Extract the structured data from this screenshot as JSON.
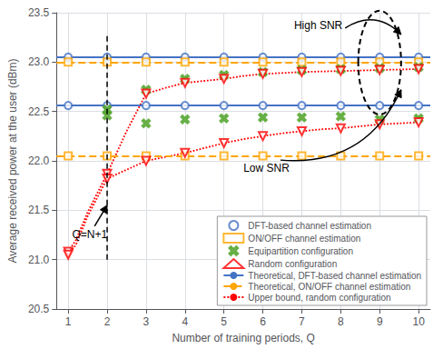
{
  "chart_data": {
    "type": "scatter",
    "xlabel": "Number of training periods, Q",
    "ylabel": "Average received power at the user (dBm)",
    "xlim": [
      0.7,
      10.3
    ],
    "xticks": [
      1,
      2,
      3,
      4,
      5,
      6,
      7,
      8,
      9,
      10
    ],
    "ylim": [
      20.5,
      23.5
    ],
    "yticks": [
      20.5,
      {
        "value": 21,
        "label": "21.0"
      },
      21.5,
      {
        "value": 22,
        "label": "22.0"
      },
      22.5,
      {
        "value": 23,
        "label": "23.0"
      },
      23.5
    ],
    "grid": true,
    "legend": "lower right",
    "series": [
      {
        "name": "DFT-based channel estimation",
        "type": "scatter",
        "marker": "circle",
        "color": "#4472C4",
        "x": [
          1,
          2,
          3,
          4,
          5,
          6,
          7,
          8,
          9,
          10
        ],
        "values": [
          23.05,
          23.05,
          23.05,
          23.05,
          23.05,
          23.05,
          23.05,
          23.05,
          23.05,
          23.05
        ]
      },
      {
        "name": "DFT-based channel estimation",
        "type": "scatter",
        "marker": "circle",
        "color": "#4472C4",
        "x": [
          1,
          2,
          3,
          4,
          5,
          6,
          7,
          8,
          9,
          10
        ],
        "values": [
          22.56,
          22.56,
          22.56,
          22.56,
          22.56,
          22.56,
          22.56,
          22.56,
          22.56,
          22.56
        ]
      },
      {
        "name": "ON/OFF channel estimation",
        "type": "scatter",
        "marker": "square",
        "color": "#FFA500",
        "x": [
          1,
          2,
          3,
          4,
          5,
          6,
          7,
          8,
          9,
          10
        ],
        "values": [
          23.0,
          23.0,
          23.0,
          23.0,
          23.0,
          23.0,
          23.0,
          23.0,
          23.0,
          23.0
        ]
      },
      {
        "name": "ON/OFF channel estimation",
        "type": "scatter",
        "marker": "square",
        "color": "#FFA500",
        "x": [
          1,
          2,
          3,
          4,
          5,
          6,
          7,
          8,
          9,
          10
        ],
        "values": [
          22.05,
          22.05,
          22.05,
          22.05,
          22.05,
          22.05,
          22.05,
          22.05,
          22.05,
          22.05
        ]
      },
      {
        "name": "Equipartition configuration",
        "type": "scatter",
        "marker": "x",
        "color": "#55A630",
        "x": [
          2,
          3,
          4,
          5,
          6,
          7,
          8,
          9,
          10
        ],
        "values": [
          22.52,
          22.72,
          22.83,
          22.87,
          22.9,
          22.92,
          22.93,
          22.94,
          22.95
        ]
      },
      {
        "name": "Equipartition configuration",
        "type": "scatter",
        "marker": "x",
        "color": "#55A630",
        "x": [
          2,
          3,
          4,
          5,
          6,
          7,
          8,
          9,
          10
        ],
        "values": [
          22.46,
          22.38,
          22.42,
          22.43,
          22.44,
          22.44,
          22.45,
          22.42,
          22.43
        ]
      },
      {
        "name": "Random configuration",
        "type": "scatter",
        "marker": "triangle_down",
        "color": "#FF0000",
        "x": [
          1,
          2,
          3,
          4,
          5,
          6,
          7,
          8,
          9,
          10
        ],
        "values": [
          21.08,
          21.87,
          22.68,
          22.79,
          22.83,
          22.88,
          22.9,
          22.91,
          22.92,
          22.93
        ]
      },
      {
        "name": "Random configuration",
        "type": "scatter",
        "marker": "triangle_down",
        "color": "#FF0000",
        "x": [
          1,
          2,
          3,
          4,
          5,
          6,
          7,
          8,
          9,
          10
        ],
        "values": [
          21.05,
          21.82,
          22.0,
          22.08,
          22.18,
          22.25,
          22.3,
          22.33,
          22.37,
          22.39
        ]
      },
      {
        "name": "Theoretical, DFT-based channel estimation",
        "type": "hline",
        "color": "#4472C4",
        "line_style": "solid",
        "values": [
          23.05,
          22.56
        ]
      },
      {
        "name": "Theoretical, ON/OFF channel estimation",
        "type": "hline",
        "color": "#FFA500",
        "line_style": "dashed",
        "values": [
          23.0,
          22.05
        ]
      },
      {
        "name": "Upper bound, random configuration",
        "type": "line",
        "color": "#FF0000",
        "line_style": "dotted",
        "x": [
          1.0,
          1.2,
          1.5,
          2.0,
          2.5,
          3.0,
          3.5,
          4.0,
          4.5,
          5.0,
          5.5,
          6.0,
          6.5,
          7.0,
          7.5,
          8.0,
          8.5,
          9.0,
          9.5,
          10.0
        ],
        "values": [
          21.08,
          21.2,
          21.48,
          21.87,
          22.3,
          22.68,
          22.74,
          22.79,
          22.81,
          22.83,
          22.86,
          22.88,
          22.89,
          22.9,
          22.905,
          22.91,
          22.915,
          22.92,
          22.925,
          22.93
        ]
      },
      {
        "name": "Upper bound, random configuration",
        "type": "line",
        "color": "#FF0000",
        "line_style": "dotted",
        "x": [
          1.0,
          1.2,
          1.5,
          2.0,
          2.5,
          3.0,
          3.5,
          4.0,
          4.5,
          5.0,
          5.5,
          6.0,
          6.5,
          7.0,
          7.5,
          8.0,
          8.5,
          9.0,
          9.5,
          10.0
        ],
        "values": [
          21.05,
          21.15,
          21.44,
          21.82,
          21.91,
          22.0,
          22.04,
          22.08,
          22.13,
          22.18,
          22.22,
          22.25,
          22.28,
          22.3,
          22.32,
          22.33,
          22.35,
          22.37,
          22.38,
          22.39
        ]
      }
    ],
    "annotations": [
      {
        "text": "High SNR",
        "x": 6.8,
        "y": 23.32,
        "arrow_x": 9.55,
        "arrow_y": 23.28
      },
      {
        "text": "Low SNR",
        "x": 5.5,
        "y": 21.87,
        "arrow_x": 9.55,
        "arrow_y": 22.72
      },
      {
        "text": "Q=N+1",
        "x": 1.1,
        "y": 21.2,
        "arrow_x": 2.0,
        "arrow_y": 21.55
      }
    ],
    "shapes": [
      {
        "type": "vline",
        "x": 2.0,
        "y": [
          21.0,
          23.3
        ],
        "color": "#000000",
        "line_style": "dashed"
      },
      {
        "type": "ellipse",
        "x": 9.0,
        "y": 22.995,
        "width": 1.1,
        "height": 1.05,
        "color": "#000000",
        "line_style": "dashed"
      }
    ]
  }
}
